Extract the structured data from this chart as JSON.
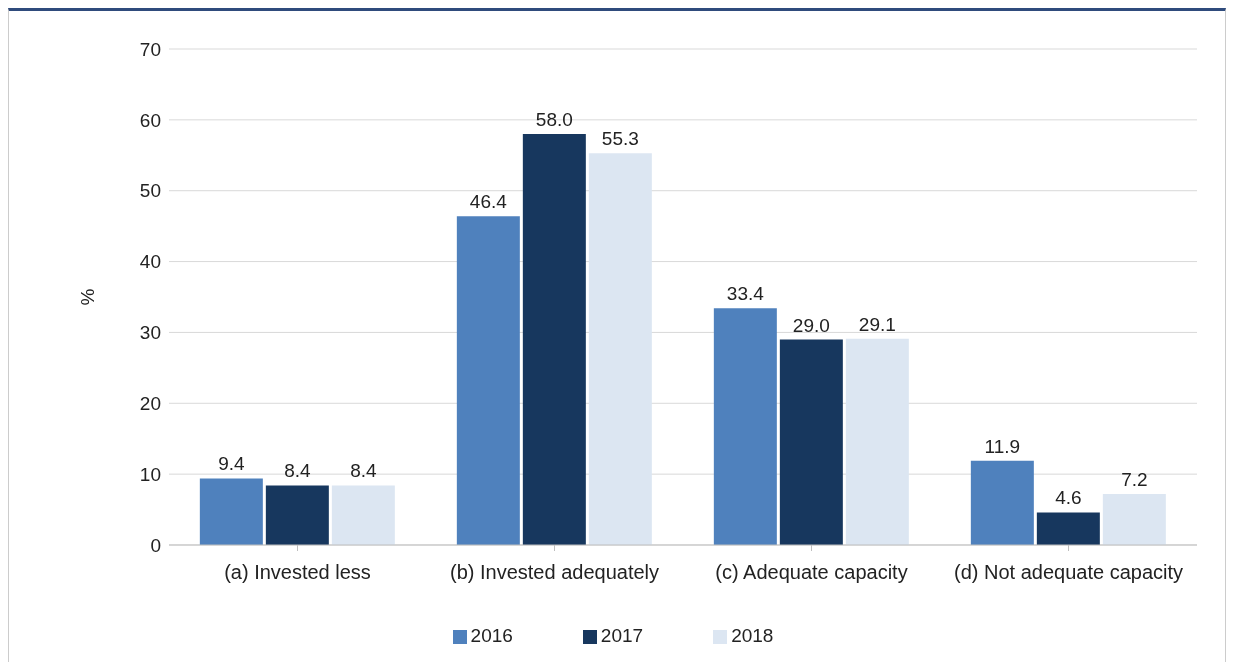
{
  "chart_data": {
    "type": "bar",
    "ylabel": "%",
    "categories": [
      "(a) Invested less",
      "(b) Invested adequately",
      "(c) Adequate capacity",
      "(d) Not adequate capacity"
    ],
    "series": [
      {
        "name": "2016",
        "color": "#4f81bd",
        "values": [
          9.4,
          46.4,
          33.4,
          11.9
        ],
        "value_labels": [
          "9.4",
          "46.4",
          "33.4",
          "11.9"
        ]
      },
      {
        "name": "2017",
        "color": "#17375e",
        "values": [
          8.4,
          58.0,
          29.0,
          4.6
        ],
        "value_labels": [
          "8.4",
          "58.0",
          "29.0",
          "4.6"
        ]
      },
      {
        "name": "2018",
        "color": "#dce6f2",
        "values": [
          8.4,
          55.3,
          29.1,
          7.2
        ],
        "value_labels": [
          "8.4",
          "55.3",
          "29.1",
          "7.2"
        ]
      }
    ],
    "ylim": [
      0,
      70
    ],
    "yticks": [
      0,
      10,
      20,
      30,
      40,
      50,
      60,
      70
    ],
    "grid": "y",
    "legend": "bottom"
  }
}
